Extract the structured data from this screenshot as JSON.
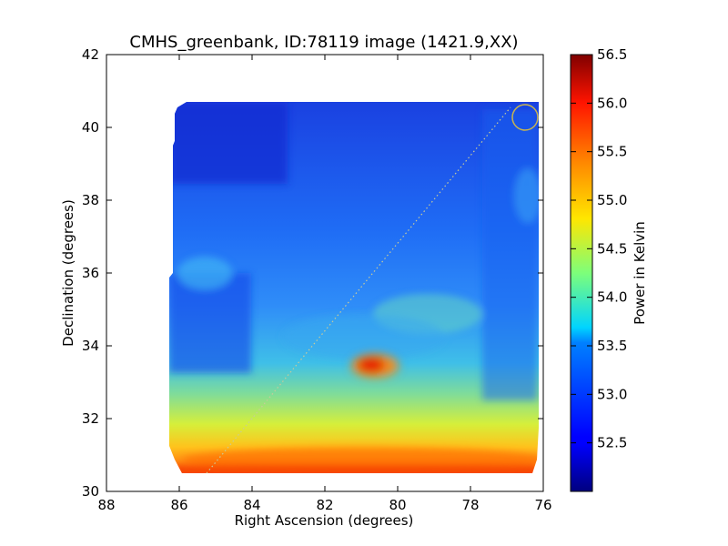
{
  "chart_data": {
    "type": "heatmap",
    "title": "CMHS_greenbank, ID:78119 image (1421.9,XX)",
    "xlabel": "Right Ascension (degrees)",
    "ylabel": "Declination (degrees)",
    "xlim": [
      88,
      76
    ],
    "ylim": [
      30,
      42
    ],
    "x_ticks": [
      "88",
      "86",
      "84",
      "82",
      "80",
      "78",
      "76"
    ],
    "y_ticks": [
      "30",
      "32",
      "34",
      "36",
      "38",
      "40",
      "42"
    ],
    "colorbar": {
      "label": "Power in Kelvin",
      "range": [
        52.0,
        56.5
      ],
      "ticks": [
        "52.5",
        "53.0",
        "53.5",
        "54.0",
        "54.5",
        "55.0",
        "55.5",
        "56.0",
        "56.5"
      ],
      "colormap": "jet"
    },
    "map_extent": {
      "ra": [
        86.3,
        76.1
      ],
      "dec": [
        30.55,
        40.65
      ]
    },
    "features": [
      {
        "name": "hot spot",
        "ra": 80.7,
        "dec": 33.4,
        "value": 55.9
      },
      {
        "name": "southern band",
        "ra": 81.0,
        "dec": 30.8,
        "value": 55.8
      }
    ],
    "annotations": {
      "circle": {
        "ra": 76.5,
        "dec": 40.3,
        "radius_deg": 0.35,
        "color": "#c8b450"
      },
      "dotted_line": {
        "ra": [
          85.4,
          76.8
        ],
        "dec": [
          30.5,
          40.5
        ]
      }
    }
  }
}
